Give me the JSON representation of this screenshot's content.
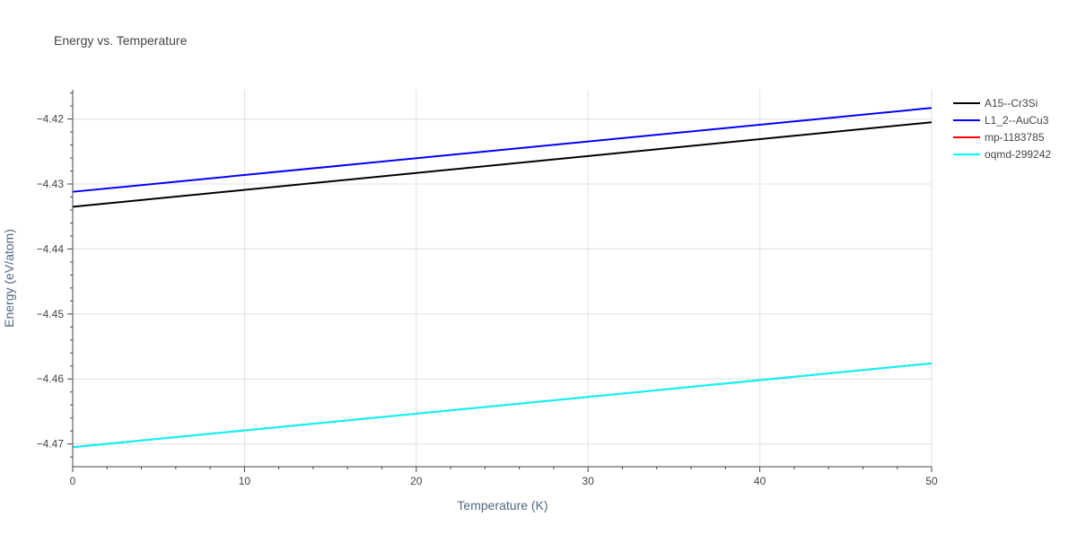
{
  "chart_data": {
    "type": "line",
    "title": "Energy vs. Temperature",
    "xlabel": "Temperature (K)",
    "ylabel": "Energy (eV/atom)",
    "xlim": [
      0,
      50
    ],
    "ylim": [
      -4.4735,
      -4.4155
    ],
    "x_ticks": [
      0,
      10,
      20,
      30,
      40,
      50
    ],
    "y_ticks": [
      -4.47,
      -4.46,
      -4.45,
      -4.44,
      -4.43,
      -4.42
    ],
    "x_tick_labels": [
      "0",
      "10",
      "20",
      "30",
      "40",
      "50"
    ],
    "y_tick_labels": [
      "−4.47",
      "−4.46",
      "−4.45",
      "−4.44",
      "−4.43",
      "−4.42"
    ],
    "grid": true,
    "legend_position": "top-right",
    "series": [
      {
        "name": "A15--Cr3Si",
        "color": "#000000",
        "x": [
          0,
          50
        ],
        "y": [
          -4.4335,
          -4.4205
        ]
      },
      {
        "name": "L1_2--AuCu3",
        "color": "#0000ff",
        "x": [
          0,
          50
        ],
        "y": [
          -4.4312,
          -4.4183
        ]
      },
      {
        "name": "mp-1183785",
        "color": "#ff0000",
        "x": [
          0,
          50
        ],
        "y": [
          -4.4705,
          -4.4576
        ]
      },
      {
        "name": "oqmd-299242",
        "color": "#00ffff",
        "x": [
          0,
          50
        ],
        "y": [
          -4.4705,
          -4.4576
        ]
      }
    ]
  }
}
